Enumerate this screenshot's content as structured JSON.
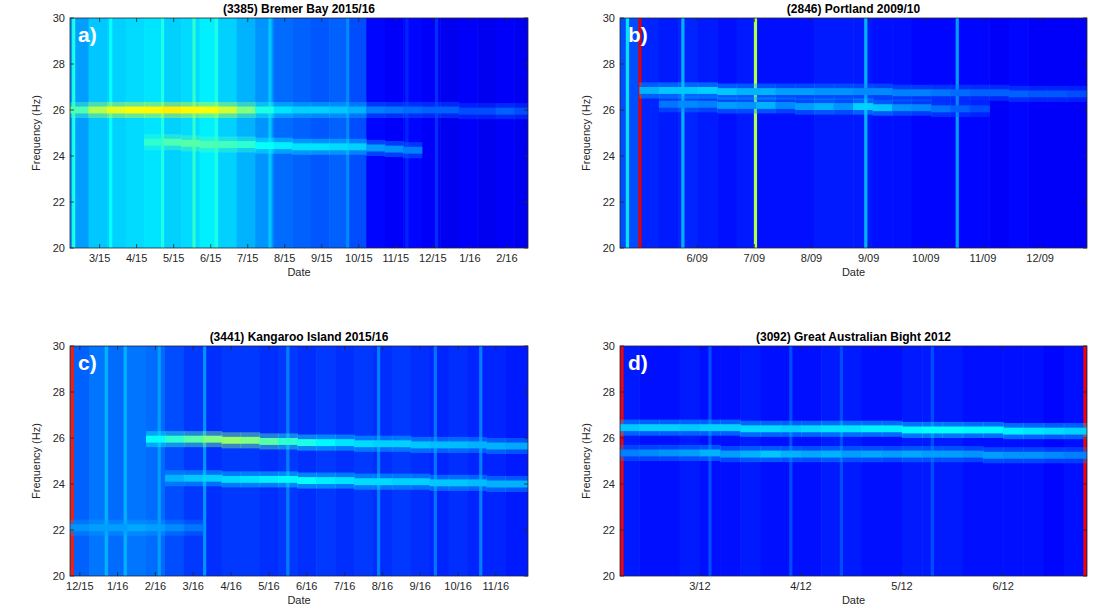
{
  "chart_data": [
    {
      "type": "spectrogram",
      "label": "a)",
      "title": "(3385) Bremer Bay 2015/16",
      "x_label": "Date",
      "y_label": "Frequency (Hz)",
      "grid": false,
      "xlim": [
        2.2,
        14.57
      ],
      "xticks": [
        {
          "value": 3,
          "label": "3/15"
        },
        {
          "value": 4,
          "label": "4/15"
        },
        {
          "value": 5,
          "label": "5/15"
        },
        {
          "value": 6,
          "label": "6/15"
        },
        {
          "value": 7,
          "label": "7/15"
        },
        {
          "value": 8,
          "label": "8/15"
        },
        {
          "value": 9,
          "label": "9/15"
        },
        {
          "value": 10,
          "label": "10/15"
        },
        {
          "value": 11,
          "label": "11/15"
        },
        {
          "value": 12,
          "label": "12/15"
        },
        {
          "value": 13,
          "label": "1/16"
        },
        {
          "value": 14,
          "label": "2/16"
        }
      ],
      "ylim": [
        20,
        30
      ],
      "yticks": [
        20,
        22,
        24,
        26,
        28,
        30
      ],
      "x": [
        2.45,
        2.95,
        3.45,
        3.95,
        4.45,
        4.95,
        5.45,
        5.95,
        6.45,
        6.95,
        7.45,
        7.95,
        8.45,
        8.95,
        9.45,
        9.95,
        10.45,
        10.95,
        11.45,
        11.95,
        12.45,
        12.95,
        13.45,
        13.95,
        14.45
      ],
      "background": [
        0.28,
        0.32,
        0.33,
        0.34,
        0.35,
        0.33,
        0.34,
        0.36,
        0.33,
        0.3,
        0.27,
        0.23,
        0.22,
        0.21,
        0.22,
        0.2,
        0.13,
        0.12,
        0.13,
        0.12,
        0.11,
        0.12,
        0.11,
        0.12,
        0.11
      ],
      "bands": [
        {
          "frequency": [
            26.0,
            26.0,
            26.0,
            26.0,
            26.0,
            26.0,
            26.0,
            26.0,
            26.0,
            26.0,
            26.0,
            26.0,
            26.0,
            26.0,
            26.0,
            26.0,
            26.0,
            26.0,
            26.0,
            26.0,
            26.0,
            25.95,
            25.95,
            25.95,
            25.95
          ],
          "intensity": [
            0.45,
            0.55,
            0.6,
            0.62,
            0.63,
            0.64,
            0.63,
            0.62,
            0.58,
            0.5,
            0.4,
            0.35,
            0.33,
            0.33,
            0.32,
            0.3,
            0.25,
            0.24,
            0.23,
            0.22,
            0.22,
            0.2,
            0.2,
            0.22,
            0.2
          ]
        },
        {
          "frequency": [
            null,
            null,
            null,
            null,
            24.6,
            24.6,
            24.55,
            24.5,
            24.5,
            24.5,
            24.45,
            24.45,
            24.4,
            24.4,
            24.4,
            24.4,
            24.35,
            24.3,
            24.25,
            null,
            null,
            null,
            null,
            null,
            null
          ],
          "intensity": [
            null,
            null,
            null,
            null,
            0.42,
            0.45,
            0.46,
            0.45,
            0.44,
            0.42,
            0.38,
            0.36,
            0.35,
            0.35,
            0.34,
            0.33,
            0.28,
            0.27,
            0.25,
            null,
            null,
            null,
            null,
            null,
            null
          ]
        }
      ],
      "stripes": {
        "x": [
          2.3,
          3.3,
          4.7,
          5.55,
          6.15,
          7.6,
          9.7,
          11.3,
          12.1
        ],
        "intensity": [
          0.4,
          0.38,
          0.4,
          0.42,
          0.4,
          0.32,
          0.26,
          0.16,
          0.17
        ]
      }
    },
    {
      "type": "spectrogram",
      "label": "b)",
      "title": "(2846) Portland 2009/10",
      "x_label": "Date",
      "y_label": "Frequency (Hz)",
      "grid": false,
      "xlim": [
        4.65,
        12.82
      ],
      "xticks": [
        {
          "value": 6,
          "label": "6/09"
        },
        {
          "value": 7,
          "label": "7/09"
        },
        {
          "value": 8,
          "label": "8/09"
        },
        {
          "value": 9,
          "label": "9/09"
        },
        {
          "value": 10,
          "label": "10/09"
        },
        {
          "value": 11,
          "label": "11/09"
        },
        {
          "value": 12,
          "label": "12/09"
        }
      ],
      "ylim": [
        20,
        30
      ],
      "yticks": [
        20,
        22,
        24,
        26,
        28,
        30
      ],
      "x": [
        4.82,
        5.16,
        5.5,
        5.84,
        6.18,
        6.52,
        6.86,
        7.2,
        7.54,
        7.88,
        8.22,
        8.56,
        8.9,
        9.24,
        9.58,
        9.92,
        10.26,
        10.6,
        10.94,
        11.28,
        11.62,
        11.96,
        12.3,
        12.64
      ],
      "background": [
        0.2,
        0.16,
        0.15,
        0.16,
        0.15,
        0.14,
        0.15,
        0.14,
        0.14,
        0.14,
        0.15,
        0.15,
        0.15,
        0.14,
        0.14,
        0.13,
        0.13,
        0.13,
        0.13,
        0.12,
        0.13,
        0.12,
        0.12,
        0.12
      ],
      "bands": [
        {
          "frequency": [
            null,
            26.85,
            26.85,
            26.85,
            26.85,
            26.8,
            26.8,
            26.8,
            26.8,
            26.8,
            26.8,
            26.8,
            26.8,
            26.8,
            26.75,
            26.75,
            26.75,
            26.75,
            26.75,
            26.75,
            26.7,
            26.7,
            26.7,
            26.7
          ],
          "intensity": [
            null,
            0.3,
            0.32,
            0.32,
            0.33,
            0.32,
            0.3,
            0.3,
            0.28,
            0.28,
            0.27,
            0.27,
            0.26,
            0.26,
            0.25,
            0.25,
            0.24,
            0.23,
            0.22,
            0.22,
            0.22,
            0.21,
            0.21,
            0.2
          ]
        },
        {
          "frequency": [
            null,
            null,
            26.25,
            26.25,
            26.25,
            26.2,
            26.2,
            26.2,
            26.2,
            26.15,
            26.15,
            26.15,
            26.15,
            26.1,
            26.1,
            26.1,
            26.05,
            26.05,
            26.05,
            null,
            null,
            null,
            null,
            null
          ],
          "intensity": [
            null,
            null,
            0.24,
            0.26,
            0.25,
            0.28,
            0.27,
            0.3,
            0.26,
            0.28,
            0.3,
            0.27,
            0.33,
            0.32,
            0.27,
            0.26,
            0.24,
            0.22,
            0.2,
            null,
            null,
            null,
            null,
            null
          ]
        }
      ],
      "stripes": {
        "x": [
          4.78,
          5.0,
          5.75,
          7.02,
          8.95,
          10.55
        ],
        "intensity": [
          0.35,
          0.9,
          0.3,
          0.55,
          0.3,
          0.28
        ]
      }
    },
    {
      "type": "spectrogram",
      "label": "c)",
      "title": "(3441) Kangaroo Island 2015/16",
      "x_label": "Date",
      "y_label": "Frequency (Hz)",
      "grid": false,
      "xlim": [
        11.74,
        23.85
      ],
      "xticks": [
        {
          "value": 12,
          "label": "12/15"
        },
        {
          "value": 13,
          "label": "1/16"
        },
        {
          "value": 14,
          "label": "2/16"
        },
        {
          "value": 15,
          "label": "3/16"
        },
        {
          "value": 16,
          "label": "4/16"
        },
        {
          "value": 17,
          "label": "5/16"
        },
        {
          "value": 18,
          "label": "6/16"
        },
        {
          "value": 19,
          "label": "7/16"
        },
        {
          "value": 20,
          "label": "8/16"
        },
        {
          "value": 21,
          "label": "9/16"
        },
        {
          "value": 22,
          "label": "10/16"
        },
        {
          "value": 23,
          "label": "11/16"
        }
      ],
      "ylim": [
        20,
        30
      ],
      "yticks": [
        20,
        22,
        24,
        26,
        28,
        30
      ],
      "x": [
        12.0,
        12.5,
        13.0,
        13.5,
        14.0,
        14.5,
        15.0,
        15.5,
        16.0,
        16.5,
        17.0,
        17.5,
        18.0,
        18.5,
        19.0,
        19.5,
        20.0,
        20.5,
        21.0,
        21.5,
        22.0,
        22.5,
        23.0,
        23.5
      ],
      "background": [
        0.22,
        0.24,
        0.23,
        0.24,
        0.23,
        0.2,
        0.18,
        0.17,
        0.18,
        0.18,
        0.17,
        0.18,
        0.17,
        0.18,
        0.17,
        0.18,
        0.17,
        0.18,
        0.17,
        0.16,
        0.17,
        0.16,
        0.16,
        0.15
      ],
      "bands": [
        {
          "frequency": [
            null,
            null,
            null,
            null,
            25.95,
            25.95,
            25.95,
            25.95,
            25.9,
            25.9,
            25.85,
            25.85,
            25.8,
            25.8,
            25.8,
            25.75,
            25.75,
            25.75,
            25.7,
            25.7,
            25.7,
            25.7,
            25.65,
            25.65
          ],
          "intensity": [
            null,
            null,
            null,
            null,
            0.38,
            0.42,
            0.46,
            0.5,
            0.52,
            0.5,
            0.46,
            0.42,
            0.4,
            0.37,
            0.35,
            0.34,
            0.33,
            0.33,
            0.32,
            0.31,
            0.31,
            0.3,
            0.3,
            0.29
          ]
        },
        {
          "frequency": [
            null,
            null,
            null,
            null,
            null,
            24.25,
            24.25,
            24.25,
            24.2,
            24.2,
            24.2,
            24.2,
            24.15,
            24.15,
            24.15,
            24.1,
            24.1,
            24.1,
            24.1,
            24.05,
            24.05,
            24.05,
            24.0,
            24.0
          ],
          "intensity": [
            null,
            null,
            null,
            null,
            null,
            0.3,
            0.32,
            0.33,
            0.34,
            0.35,
            0.36,
            0.37,
            0.38,
            0.36,
            0.35,
            0.34,
            0.34,
            0.33,
            0.33,
            0.32,
            0.32,
            0.31,
            0.3,
            0.3
          ]
        },
        {
          "frequency": [
            22.1,
            22.1,
            22.1,
            22.1,
            22.1,
            22.1,
            22.1,
            null,
            null,
            null,
            null,
            null,
            null,
            null,
            null,
            null,
            null,
            null,
            null,
            null,
            null,
            null,
            null,
            null
          ],
          "intensity": [
            0.27,
            0.28,
            0.28,
            0.29,
            0.28,
            0.26,
            0.24,
            null,
            null,
            null,
            null,
            null,
            null,
            null,
            null,
            null,
            null,
            null,
            null,
            null,
            null,
            null,
            null,
            null
          ]
        }
      ],
      "stripes": {
        "x": [
          11.8,
          12.7,
          13.2,
          14.1,
          15.3,
          17.5,
          19.9,
          21.4,
          22.6
        ],
        "intensity": [
          0.85,
          0.3,
          0.3,
          0.28,
          0.27,
          0.25,
          0.25,
          0.24,
          0.25
        ]
      }
    },
    {
      "type": "spectrogram",
      "label": "d)",
      "title": "(3092) Great Australian Bight 2012",
      "x_label": "Date",
      "y_label": "Frequency (Hz)",
      "grid": false,
      "xlim": [
        2.21,
        6.83
      ],
      "xticks": [
        {
          "value": 3,
          "label": "3/12"
        },
        {
          "value": 4,
          "label": "4/12"
        },
        {
          "value": 5,
          "label": "5/12"
        },
        {
          "value": 6,
          "label": "6/12"
        }
      ],
      "ylim": [
        20,
        30
      ],
      "yticks": [
        20,
        22,
        24,
        26,
        28,
        30
      ],
      "x": [
        2.3,
        2.5,
        2.7,
        2.9,
        3.1,
        3.3,
        3.5,
        3.7,
        3.9,
        4.1,
        4.3,
        4.5,
        4.7,
        4.9,
        5.1,
        5.3,
        5.5,
        5.7,
        5.9,
        6.1,
        6.3,
        6.5,
        6.7
      ],
      "background": [
        0.15,
        0.14,
        0.14,
        0.15,
        0.14,
        0.14,
        0.15,
        0.14,
        0.14,
        0.14,
        0.15,
        0.15,
        0.14,
        0.14,
        0.15,
        0.15,
        0.15,
        0.14,
        0.14,
        0.14,
        0.14,
        0.13,
        0.14
      ],
      "bands": [
        {
          "frequency": [
            26.45,
            26.45,
            26.45,
            26.45,
            26.45,
            26.45,
            26.4,
            26.4,
            26.4,
            26.4,
            26.4,
            26.4,
            26.4,
            26.4,
            26.35,
            26.35,
            26.35,
            26.35,
            26.35,
            26.3,
            26.3,
            26.3,
            26.3
          ],
          "intensity": [
            0.32,
            0.33,
            0.33,
            0.32,
            0.33,
            0.33,
            0.34,
            0.34,
            0.33,
            0.34,
            0.35,
            0.35,
            0.36,
            0.36,
            0.37,
            0.38,
            0.38,
            0.37,
            0.37,
            0.36,
            0.35,
            0.34,
            0.33
          ]
        },
        {
          "frequency": [
            25.35,
            25.35,
            25.35,
            25.35,
            25.35,
            25.3,
            25.3,
            25.3,
            25.3,
            25.3,
            25.3,
            25.3,
            25.3,
            25.3,
            25.3,
            25.3,
            25.3,
            25.3,
            25.25,
            25.25,
            25.25,
            25.25,
            25.25
          ],
          "intensity": [
            0.25,
            0.26,
            0.27,
            0.28,
            0.3,
            0.28,
            0.3,
            0.32,
            0.3,
            0.29,
            0.3,
            0.28,
            0.29,
            0.28,
            0.29,
            0.28,
            0.28,
            0.27,
            0.28,
            0.27,
            0.27,
            0.26,
            0.25
          ]
        }
      ],
      "stripes": {
        "x": [
          2.23,
          3.1,
          3.9,
          4.4,
          5.3,
          6.81
        ],
        "intensity": [
          0.88,
          0.2,
          0.2,
          0.2,
          0.2,
          0.88
        ]
      }
    }
  ]
}
